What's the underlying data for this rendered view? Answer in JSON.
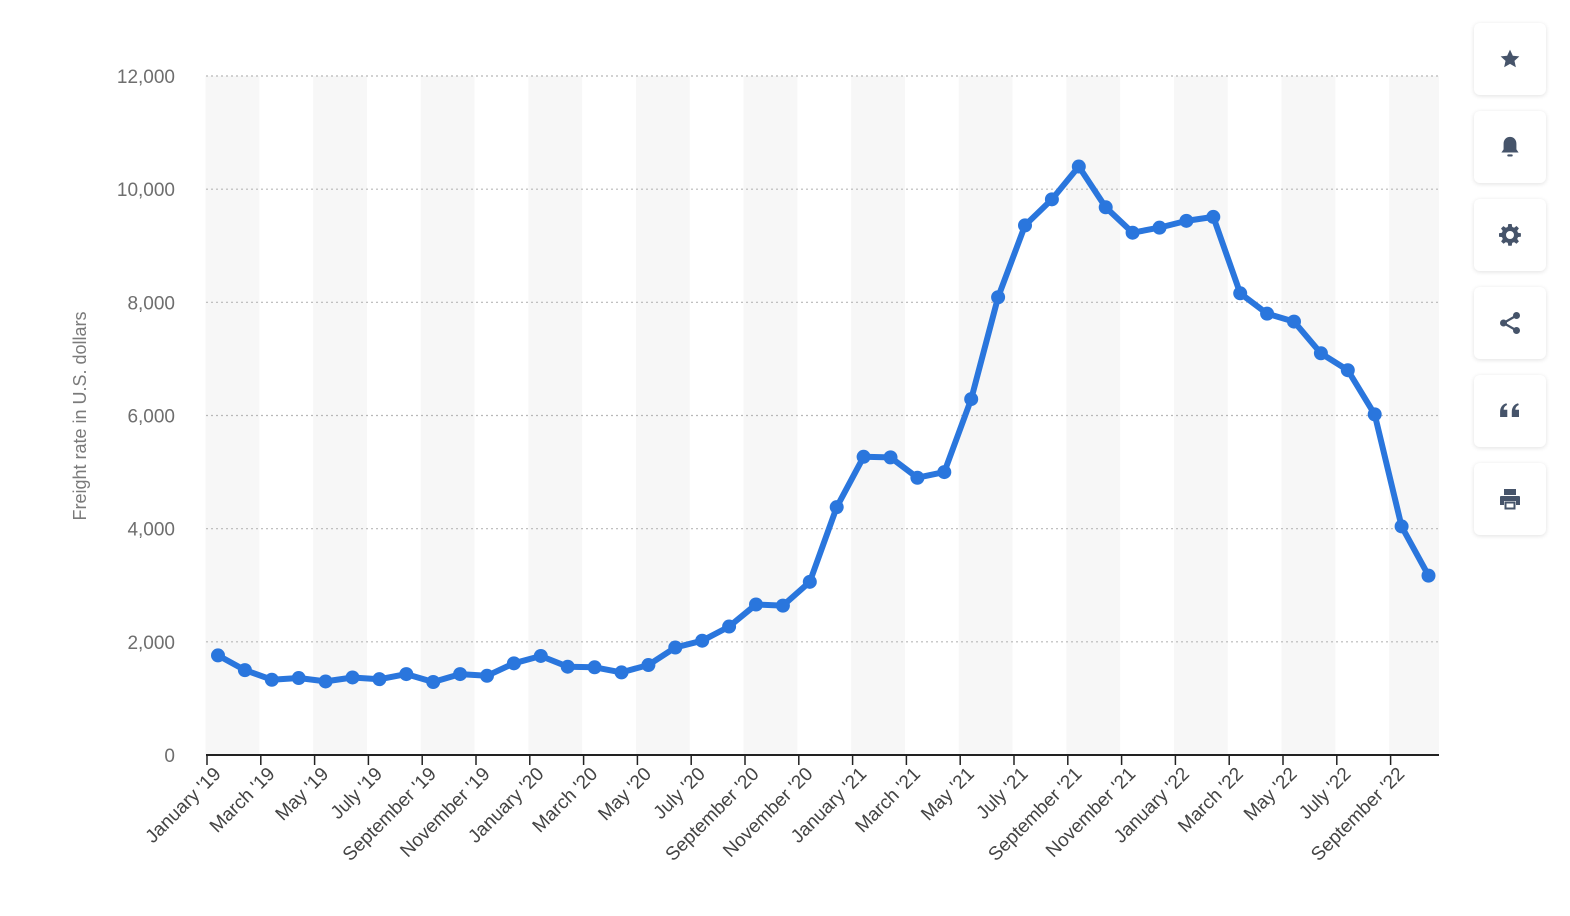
{
  "colors": {
    "line": "#2a76dd",
    "band": "#f7f7f7",
    "grid": "#b8b8b8",
    "axis": "#222222",
    "icon": "#46546a"
  },
  "toolbar": {
    "buttons": [
      {
        "name": "favorite-button",
        "icon": "star-icon"
      },
      {
        "name": "notification-button",
        "icon": "bell-icon"
      },
      {
        "name": "settings-button",
        "icon": "gear-icon"
      },
      {
        "name": "share-button",
        "icon": "share-icon"
      },
      {
        "name": "cite-button",
        "icon": "quote-icon"
      },
      {
        "name": "print-button",
        "icon": "printer-icon"
      }
    ]
  },
  "chart_data": {
    "type": "line",
    "title": "",
    "xlabel": "",
    "ylabel": "Freight rate in U.S. dollars",
    "ylim": [
      0,
      12000
    ],
    "yticks": [
      0,
      2000,
      4000,
      6000,
      8000,
      10000,
      12000
    ],
    "ytick_labels": [
      "0",
      "2,000",
      "4,000",
      "6,000",
      "8,000",
      "10,000",
      "12,000"
    ],
    "grid": true,
    "legend": "none",
    "x": [
      "Jan 2019",
      "Feb 2019",
      "Mar 2019",
      "Apr 2019",
      "May 2019",
      "Jun 2019",
      "Jul 2019",
      "Aug 2019",
      "Sep 2019",
      "Oct 2019",
      "Nov 2019",
      "Dec 2019",
      "Jan 2020",
      "Feb 2020",
      "Mar 2020",
      "Apr 2020",
      "May 2020",
      "Jun 2020",
      "Jul 2020",
      "Aug 2020",
      "Sep 2020",
      "Oct 2020",
      "Nov 2020",
      "Dec 2020",
      "Jan 2021",
      "Feb 2021",
      "Mar 2021",
      "Apr 2021",
      "May 2021",
      "Jun 2021",
      "Jul 2021",
      "Aug 2021",
      "Sep 2021",
      "Oct 2021",
      "Nov 2021",
      "Dec 2021",
      "Jan 2022",
      "Feb 2022",
      "Mar 2022",
      "Apr 2022",
      "May 2022",
      "Jun 2022",
      "Jul 2022",
      "Aug 2022",
      "Sep 2022",
      "Oct 2022"
    ],
    "xtick_labels": [
      "January '19",
      "March '19",
      "May '19",
      "July '19",
      "September '19",
      "November '19",
      "January '20",
      "March '20",
      "May '20",
      "July '20",
      "September '20",
      "November '20",
      "January '21",
      "March '21",
      "May '21",
      "July '21",
      "September '21",
      "November '21",
      "January '22",
      "March '22",
      "May '22",
      "July '22",
      "September '22"
    ],
    "series": [
      {
        "values": [
          1760,
          1500,
          1330,
          1360,
          1300,
          1370,
          1340,
          1430,
          1290,
          1430,
          1400,
          1620,
          1750,
          1560,
          1550,
          1460,
          1590,
          1900,
          2020,
          2270,
          2660,
          2640,
          3060,
          4380,
          5270,
          5260,
          4900,
          5000,
          6290,
          8090,
          9360,
          9820,
          10400,
          9680,
          9230,
          9320,
          9440,
          9510,
          8160,
          7800,
          7660,
          7100,
          6800,
          6020,
          4040,
          3170
        ]
      }
    ]
  }
}
